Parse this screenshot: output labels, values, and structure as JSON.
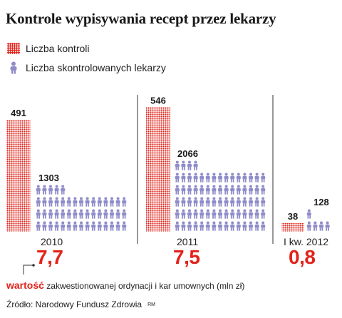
{
  "title": "Kontrole wypisywania recept przez lekarzy",
  "legend": {
    "kontrole_label": "Liczba kontroli",
    "lekarze_label": "Liczba skontrolowanych lekarzy"
  },
  "note": {
    "keyword": "wartość",
    "text": "zakwestionowanej ordynacji i kar umownych (mln zł)"
  },
  "source": {
    "text": "Źródło: Narodowy Fundusz Zdrowia",
    "credit": "RM"
  },
  "colors": {
    "accent": "#e2231a",
    "people": "#8f8cc9",
    "divider": "#333333"
  },
  "icons": {
    "kontrole": "dotted-square-icon",
    "lekarze": "person-icon"
  },
  "chart_data": {
    "type": "bar",
    "categories": [
      "2010",
      "2011",
      "I kw. 2012"
    ],
    "series": [
      {
        "name": "Liczba kontroli",
        "values": [
          491,
          546,
          38
        ]
      },
      {
        "name": "Liczba skontrolowanych lekarzy",
        "values": [
          1303,
          2066,
          128
        ]
      }
    ],
    "value_labels": {
      "kontrole": [
        "491",
        "546",
        "38"
      ],
      "lekarze": [
        "1303",
        "2066",
        "128"
      ]
    },
    "amounts": {
      "values": [
        7.7,
        7.5,
        0.8
      ],
      "labels": [
        "7,7",
        "7,5",
        "0,8"
      ]
    },
    "title": "Kontrole wypisywania recept przez lekarzy",
    "xlabel": "",
    "ylabel": "",
    "grid": false,
    "legend": "top-left"
  }
}
